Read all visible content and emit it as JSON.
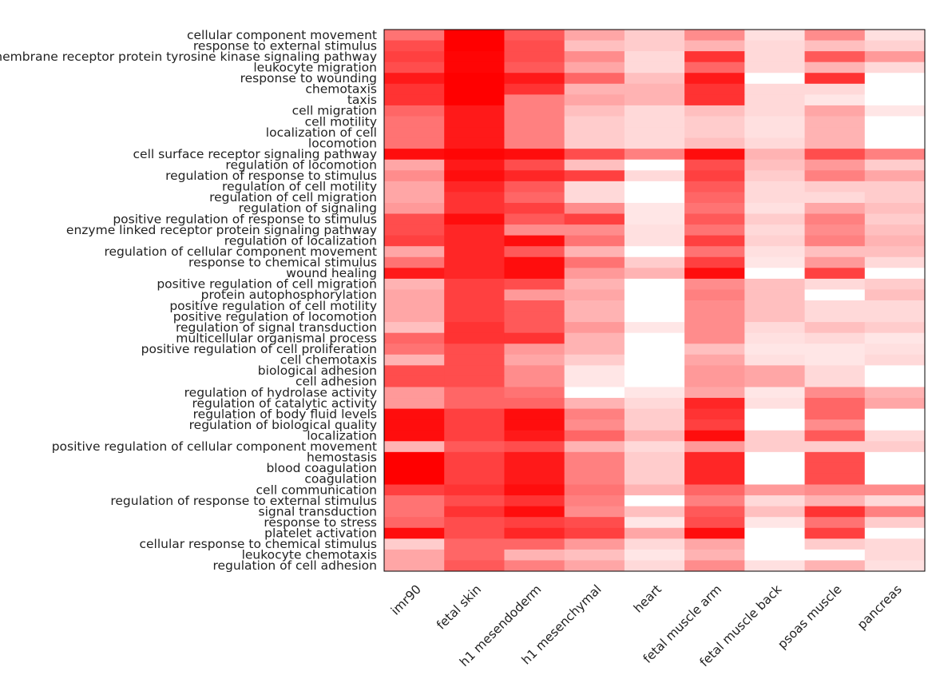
{
  "chart_data": {
    "type": "heatmap",
    "title": "",
    "xlabel": "",
    "ylabel": "",
    "colormap": {
      "low": "#ffffff",
      "high": "#ff0000"
    },
    "grid": false,
    "x_labels": [
      "imr90",
      "fetal skin",
      "h1 mesendoderm",
      "h1 mesenchymal",
      "heart",
      "fetal muscle arm",
      "fetal muscle back",
      "psoas muscle",
      "pancreas"
    ],
    "y_labels": [
      "cellular component movement",
      "response to external stimulus",
      "transmembrane receptor protein tyrosine kinase signaling pathway",
      "leukocyte migration",
      "response to wounding",
      "chemotaxis",
      "taxis",
      "cell migration",
      "cell motility",
      "localization of cell",
      "locomotion",
      "cell surface receptor signaling pathway",
      "regulation of locomotion",
      "regulation of response to stimulus",
      "regulation of cell motility",
      "regulation of cell migration",
      "regulation of signaling",
      "positive regulation of response to stimulus",
      "enzyme linked receptor protein signaling pathway",
      "regulation of localization",
      "regulation of cellular component movement",
      "response to chemical stimulus",
      "wound healing",
      "positive regulation of cell migration",
      "protein autophosphorylation",
      "positive regulation of cell motility",
      "positive regulation of locomotion",
      "regulation of signal transduction",
      "multicellular organismal process",
      "positive regulation of cell proliferation",
      "cell chemotaxis",
      "biological adhesion",
      "cell adhesion",
      "regulation of hydrolase activity",
      "regulation of catalytic activity",
      "regulation of body fluid levels",
      "regulation of biological quality",
      "localization",
      "positive regulation of cellular component movement",
      "hemostasis",
      "blood coagulation",
      "coagulation",
      "cell communication",
      "regulation of response to external stimulus",
      "signal transduction",
      "response to stress",
      "platelet activation",
      "cellular response to chemical stimulus",
      "leukocyte chemotaxis",
      "regulation of cell adhesion"
    ],
    "values": [
      [
        0.55,
        1.0,
        0.65,
        0.35,
        0.2,
        0.45,
        0.12,
        0.45,
        0.12
      ],
      [
        0.7,
        1.0,
        0.7,
        0.25,
        0.2,
        0.3,
        0.15,
        0.25,
        0.18
      ],
      [
        0.75,
        0.98,
        0.7,
        0.45,
        0.15,
        0.8,
        0.15,
        0.65,
        0.4
      ],
      [
        0.7,
        0.98,
        0.65,
        0.35,
        0.15,
        0.6,
        0.15,
        0.3,
        0.15
      ],
      [
        0.9,
        1.0,
        0.9,
        0.6,
        0.25,
        0.9,
        0.0,
        0.8,
        0.0
      ],
      [
        0.8,
        1.0,
        0.8,
        0.3,
        0.3,
        0.8,
        0.15,
        0.15,
        0.0
      ],
      [
        0.8,
        1.0,
        0.5,
        0.35,
        0.3,
        0.8,
        0.15,
        0.1,
        0.0
      ],
      [
        0.6,
        0.9,
        0.5,
        0.25,
        0.15,
        0.25,
        0.15,
        0.35,
        0.1
      ],
      [
        0.55,
        0.9,
        0.5,
        0.2,
        0.15,
        0.2,
        0.12,
        0.3,
        0.0
      ],
      [
        0.55,
        0.9,
        0.5,
        0.2,
        0.15,
        0.2,
        0.12,
        0.3,
        0.0
      ],
      [
        0.55,
        0.9,
        0.5,
        0.2,
        0.15,
        0.25,
        0.15,
        0.3,
        0.0
      ],
      [
        0.95,
        0.98,
        0.95,
        0.7,
        0.5,
        0.95,
        0.3,
        0.7,
        0.5
      ],
      [
        0.35,
        0.9,
        0.7,
        0.25,
        0.0,
        0.7,
        0.25,
        0.4,
        0.2
      ],
      [
        0.45,
        0.95,
        0.85,
        0.75,
        0.15,
        0.75,
        0.2,
        0.5,
        0.35
      ],
      [
        0.35,
        0.85,
        0.65,
        0.15,
        0.0,
        0.65,
        0.15,
        0.2,
        0.2
      ],
      [
        0.35,
        0.8,
        0.6,
        0.15,
        0.0,
        0.6,
        0.15,
        0.15,
        0.2
      ],
      [
        0.4,
        0.8,
        0.75,
        0.45,
        0.1,
        0.55,
        0.12,
        0.35,
        0.25
      ],
      [
        0.7,
        0.95,
        0.65,
        0.75,
        0.1,
        0.65,
        0.2,
        0.5,
        0.2
      ],
      [
        0.7,
        0.85,
        0.45,
        0.45,
        0.12,
        0.55,
        0.15,
        0.45,
        0.25
      ],
      [
        0.75,
        0.85,
        0.95,
        0.55,
        0.12,
        0.75,
        0.18,
        0.5,
        0.3
      ],
      [
        0.35,
        0.85,
        0.65,
        0.3,
        0.0,
        0.55,
        0.12,
        0.25,
        0.25
      ],
      [
        0.55,
        0.85,
        0.95,
        0.55,
        0.2,
        0.75,
        0.1,
        0.4,
        0.15
      ],
      [
        0.9,
        0.85,
        0.95,
        0.4,
        0.3,
        0.95,
        0.0,
        0.75,
        0.0
      ],
      [
        0.3,
        0.75,
        0.7,
        0.3,
        0.0,
        0.45,
        0.25,
        0.15,
        0.2
      ],
      [
        0.35,
        0.75,
        0.4,
        0.35,
        0.0,
        0.5,
        0.25,
        0.0,
        0.25
      ],
      [
        0.35,
        0.75,
        0.65,
        0.3,
        0.0,
        0.45,
        0.25,
        0.15,
        0.15
      ],
      [
        0.35,
        0.75,
        0.65,
        0.3,
        0.0,
        0.45,
        0.25,
        0.15,
        0.15
      ],
      [
        0.25,
        0.8,
        0.65,
        0.4,
        0.1,
        0.45,
        0.15,
        0.25,
        0.2
      ],
      [
        0.6,
        0.8,
        0.8,
        0.3,
        0.0,
        0.45,
        0.12,
        0.15,
        0.1
      ],
      [
        0.55,
        0.7,
        0.4,
        0.3,
        0.0,
        0.25,
        0.1,
        0.1,
        0.12
      ],
      [
        0.3,
        0.7,
        0.35,
        0.2,
        0.0,
        0.35,
        0.12,
        0.1,
        0.15
      ],
      [
        0.7,
        0.7,
        0.45,
        0.1,
        0.0,
        0.4,
        0.35,
        0.15,
        0.0
      ],
      [
        0.7,
        0.7,
        0.45,
        0.1,
        0.0,
        0.4,
        0.35,
        0.15,
        0.0
      ],
      [
        0.4,
        0.6,
        0.55,
        0.0,
        0.1,
        0.35,
        0.1,
        0.45,
        0.3
      ],
      [
        0.4,
        0.6,
        0.6,
        0.3,
        0.15,
        0.85,
        0.12,
        0.6,
        0.35
      ],
      [
        0.95,
        0.75,
        0.95,
        0.5,
        0.2,
        0.8,
        0.0,
        0.6,
        0.0
      ],
      [
        0.95,
        0.75,
        0.95,
        0.45,
        0.2,
        0.75,
        0.0,
        0.45,
        0.0
      ],
      [
        0.95,
        0.75,
        0.9,
        0.6,
        0.3,
        0.95,
        0.2,
        0.65,
        0.15
      ],
      [
        0.3,
        0.65,
        0.7,
        0.3,
        0.15,
        0.4,
        0.2,
        0.2,
        0.2
      ],
      [
        1.0,
        0.75,
        0.9,
        0.5,
        0.2,
        0.85,
        0.0,
        0.7,
        0.0
      ],
      [
        1.0,
        0.75,
        0.9,
        0.5,
        0.2,
        0.85,
        0.0,
        0.7,
        0.0
      ],
      [
        1.0,
        0.75,
        0.9,
        0.5,
        0.2,
        0.85,
        0.0,
        0.7,
        0.0
      ],
      [
        0.75,
        0.8,
        0.95,
        0.55,
        0.3,
        0.6,
        0.4,
        0.45,
        0.45
      ],
      [
        0.55,
        0.7,
        0.8,
        0.5,
        0.0,
        0.5,
        0.15,
        0.3,
        0.15
      ],
      [
        0.55,
        0.8,
        0.95,
        0.45,
        0.25,
        0.65,
        0.25,
        0.8,
        0.5
      ],
      [
        0.6,
        0.7,
        0.75,
        0.7,
        0.1,
        0.7,
        0.1,
        0.55,
        0.2
      ],
      [
        0.95,
        0.7,
        0.85,
        0.75,
        0.35,
        0.95,
        0.0,
        0.75,
        0.0
      ],
      [
        0.2,
        0.6,
        0.6,
        0.4,
        0.15,
        0.35,
        0.0,
        0.2,
        0.15
      ],
      [
        0.35,
        0.6,
        0.3,
        0.25,
        0.1,
        0.3,
        0.0,
        0.0,
        0.15
      ],
      [
        0.35,
        0.65,
        0.5,
        0.35,
        0.15,
        0.45,
        0.12,
        0.3,
        0.12
      ]
    ]
  }
}
